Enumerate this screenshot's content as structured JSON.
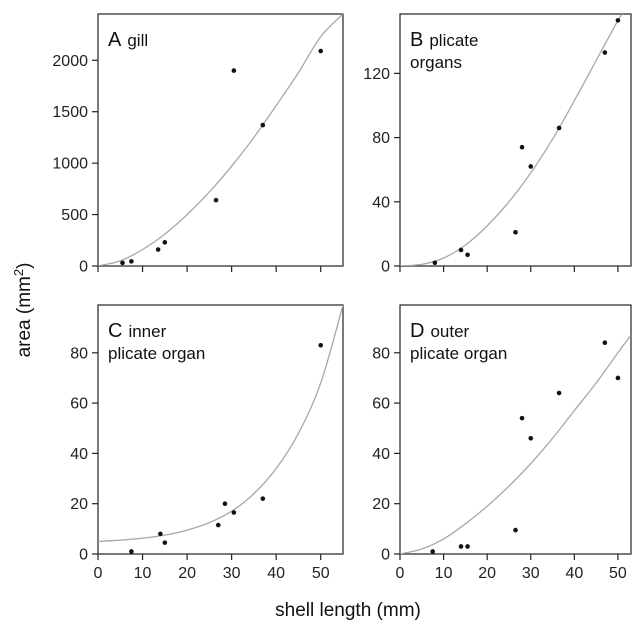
{
  "figure": {
    "xlabel": "shell length (mm)",
    "ylabel_main": "area (mm",
    "ylabel_sup": "2",
    "ylabel_end": ")"
  },
  "chart_data": [
    {
      "type": "scatter",
      "panel_letter": "A",
      "panel_title": [
        "gill"
      ],
      "xlim": [
        0,
        55
      ],
      "ylim": [
        0,
        2450
      ],
      "xticks": [
        0,
        10,
        20,
        30,
        40,
        50
      ],
      "yticks": [
        0,
        500,
        1000,
        1500,
        2000
      ],
      "show_x_tick_labels": false,
      "points": [
        {
          "x": 5.5,
          "y": 30
        },
        {
          "x": 7.5,
          "y": 45
        },
        {
          "x": 13.5,
          "y": 160
        },
        {
          "x": 15,
          "y": 230
        },
        {
          "x": 26.5,
          "y": 640
        },
        {
          "x": 30.5,
          "y": 1900
        },
        {
          "x": 37,
          "y": 1370
        },
        {
          "x": 50,
          "y": 2090
        }
      ],
      "fit_curve": [
        {
          "x": 0,
          "y": 0
        },
        {
          "x": 5,
          "y": 50
        },
        {
          "x": 10,
          "y": 160
        },
        {
          "x": 15,
          "y": 310
        },
        {
          "x": 20,
          "y": 500
        },
        {
          "x": 25,
          "y": 720
        },
        {
          "x": 30,
          "y": 970
        },
        {
          "x": 35,
          "y": 1250
        },
        {
          "x": 40,
          "y": 1560
        },
        {
          "x": 45,
          "y": 1880
        },
        {
          "x": 50,
          "y": 2230
        },
        {
          "x": 55,
          "y": 2450
        }
      ]
    },
    {
      "type": "scatter",
      "panel_letter": "B",
      "panel_title": [
        "plicate",
        "organs"
      ],
      "xlim": [
        0,
        53
      ],
      "ylim": [
        0,
        157
      ],
      "xticks": [
        0,
        10,
        20,
        30,
        40,
        50
      ],
      "yticks": [
        0,
        40,
        80,
        120
      ],
      "show_x_tick_labels": false,
      "points": [
        {
          "x": 8,
          "y": 2
        },
        {
          "x": 14,
          "y": 10
        },
        {
          "x": 15.5,
          "y": 7
        },
        {
          "x": 26.5,
          "y": 21
        },
        {
          "x": 28,
          "y": 74
        },
        {
          "x": 30,
          "y": 62
        },
        {
          "x": 36.5,
          "y": 86
        },
        {
          "x": 47,
          "y": 133
        },
        {
          "x": 50,
          "y": 153
        }
      ],
      "fit_curve": [
        {
          "x": 0,
          "y": 0
        },
        {
          "x": 5,
          "y": 1
        },
        {
          "x": 10,
          "y": 5
        },
        {
          "x": 15,
          "y": 13
        },
        {
          "x": 20,
          "y": 25
        },
        {
          "x": 25,
          "y": 40
        },
        {
          "x": 30,
          "y": 58
        },
        {
          "x": 35,
          "y": 79
        },
        {
          "x": 40,
          "y": 103
        },
        {
          "x": 45,
          "y": 128
        },
        {
          "x": 50,
          "y": 153
        },
        {
          "x": 51,
          "y": 157
        }
      ]
    },
    {
      "type": "scatter",
      "panel_letter": "C",
      "panel_title": [
        "inner",
        "plicate organ"
      ],
      "xlim": [
        0,
        55
      ],
      "ylim": [
        0,
        99
      ],
      "xticks": [
        0,
        10,
        20,
        30,
        40,
        50
      ],
      "yticks": [
        0,
        20,
        40,
        60,
        80
      ],
      "show_x_tick_labels": true,
      "points": [
        {
          "x": 7.5,
          "y": 1
        },
        {
          "x": 14,
          "y": 8
        },
        {
          "x": 15,
          "y": 4.5
        },
        {
          "x": 27,
          "y": 11.5
        },
        {
          "x": 28.5,
          "y": 20
        },
        {
          "x": 30.5,
          "y": 16.5
        },
        {
          "x": 37,
          "y": 22
        },
        {
          "x": 50,
          "y": 83
        }
      ],
      "fit_curve": [
        {
          "x": 0,
          "y": 5
        },
        {
          "x": 5,
          "y": 5.5
        },
        {
          "x": 10,
          "y": 6.3
        },
        {
          "x": 15,
          "y": 7.5
        },
        {
          "x": 20,
          "y": 9.5
        },
        {
          "x": 25,
          "y": 12.5
        },
        {
          "x": 30,
          "y": 17
        },
        {
          "x": 35,
          "y": 24
        },
        {
          "x": 40,
          "y": 34
        },
        {
          "x": 45,
          "y": 48
        },
        {
          "x": 50,
          "y": 68
        },
        {
          "x": 55,
          "y": 99
        }
      ]
    },
    {
      "type": "scatter",
      "panel_letter": "D",
      "panel_title": [
        "outer",
        "plicate organ"
      ],
      "xlim": [
        0,
        53
      ],
      "ylim": [
        0,
        99
      ],
      "xticks": [
        0,
        10,
        20,
        30,
        40,
        50
      ],
      "yticks": [
        0,
        20,
        40,
        60,
        80
      ],
      "show_x_tick_labels": true,
      "points": [
        {
          "x": 7.5,
          "y": 1
        },
        {
          "x": 14,
          "y": 3
        },
        {
          "x": 15.5,
          "y": 3
        },
        {
          "x": 26.5,
          "y": 9.5
        },
        {
          "x": 28,
          "y": 54
        },
        {
          "x": 30,
          "y": 46
        },
        {
          "x": 36.5,
          "y": 64
        },
        {
          "x": 47,
          "y": 84
        },
        {
          "x": 50,
          "y": 70
        }
      ],
      "fit_curve": [
        {
          "x": 0,
          "y": 0
        },
        {
          "x": 5,
          "y": 2
        },
        {
          "x": 10,
          "y": 6
        },
        {
          "x": 15,
          "y": 12
        },
        {
          "x": 20,
          "y": 19
        },
        {
          "x": 25,
          "y": 27
        },
        {
          "x": 30,
          "y": 36
        },
        {
          "x": 35,
          "y": 46
        },
        {
          "x": 40,
          "y": 57
        },
        {
          "x": 45,
          "y": 68
        },
        {
          "x": 50,
          "y": 80
        },
        {
          "x": 53,
          "y": 87
        }
      ]
    }
  ]
}
